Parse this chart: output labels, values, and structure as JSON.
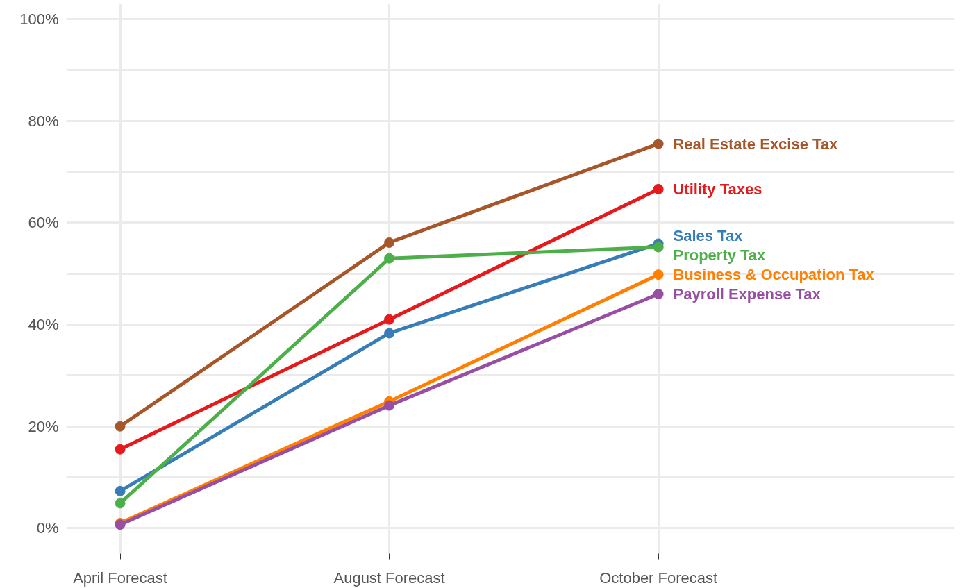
{
  "chart_data": {
    "type": "line",
    "categories": [
      "April Forecast",
      "August Forecast",
      "October Forecast"
    ],
    "series": [
      {
        "name": "Real Estate Excise Tax",
        "color": "#a65628",
        "values": [
          20.0,
          56.1,
          75.5
        ]
      },
      {
        "name": "Utility Taxes",
        "color": "#e41a1c",
        "values": [
          15.5,
          41.0,
          66.6
        ]
      },
      {
        "name": "Sales Tax",
        "color": "#377eb8",
        "values": [
          7.3,
          38.3,
          55.9
        ]
      },
      {
        "name": "Property Tax",
        "color": "#4daf4a",
        "values": [
          4.9,
          53.0,
          55.2
        ]
      },
      {
        "name": "Business & Occupation Tax",
        "color": "#ff7f00",
        "values": [
          1.0,
          24.9,
          49.8
        ]
      },
      {
        "name": "Payroll Expense Tax",
        "color": "#984ea3",
        "values": [
          0.7,
          24.1,
          46.0
        ]
      }
    ],
    "ylim": [
      -5,
      103
    ],
    "yticks": [
      {
        "value": 0,
        "label": "0%"
      },
      {
        "value": 10,
        "label": null
      },
      {
        "value": 20,
        "label": "20%"
      },
      {
        "value": 30,
        "label": null
      },
      {
        "value": 40,
        "label": "40%"
      },
      {
        "value": 50,
        "label": null
      },
      {
        "value": 60,
        "label": "60%"
      },
      {
        "value": 70,
        "label": null
      },
      {
        "value": 80,
        "label": "80%"
      },
      {
        "value": 90,
        "label": null
      },
      {
        "value": 100,
        "label": "100%"
      }
    ],
    "grid": true,
    "marker": "circle",
    "line_style": "solid"
  }
}
